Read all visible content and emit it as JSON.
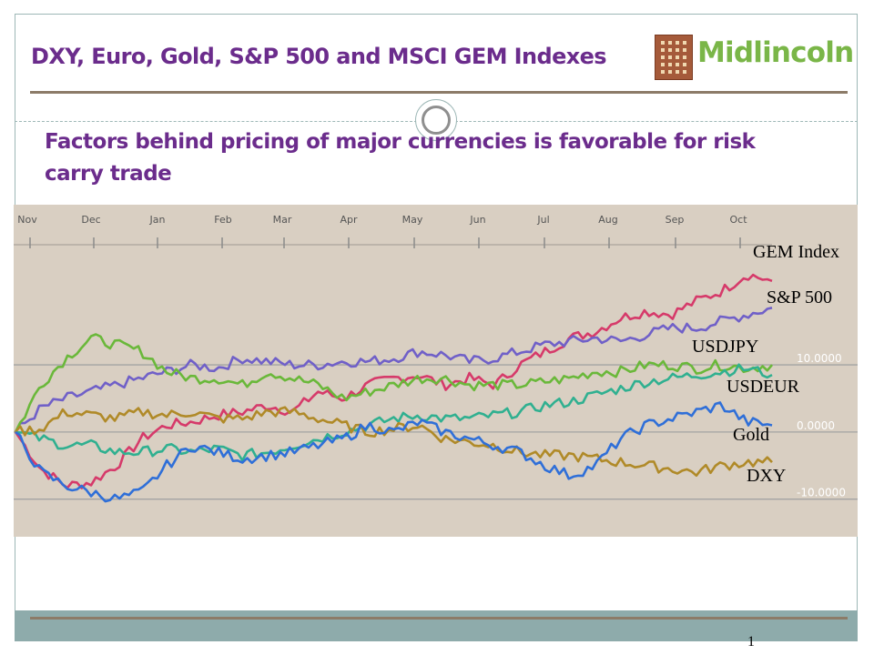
{
  "slide": {
    "title": "DXY, Euro, Gold, S&P 500 and MSCI GEM Indexes",
    "subtitle": "Factors behind pricing of major currencies is favorable for risk carry trade",
    "page_number": "1"
  },
  "logo": {
    "text": "Midlincoln",
    "text_color": "#7ab648"
  },
  "colors": {
    "title": "#6b2c8c",
    "chart_background": "#d9cfc2",
    "frame": "#9db7b6",
    "rule": "#8c7b68",
    "footer": "#8eabab"
  },
  "chart_data": {
    "type": "line",
    "title": "",
    "xlabel": "",
    "ylabel": "",
    "x_ticks": [
      "Nov",
      "Dec",
      "Jan",
      "Feb",
      "Mar",
      "Apr",
      "May",
      "Jun",
      "Jul",
      "Aug",
      "Sep",
      "Oct"
    ],
    "y_ticks": [
      {
        "value": 10,
        "label": "10.0000"
      },
      {
        "value": 0,
        "label": "0.0000"
      },
      {
        "value": -10,
        "label": "-10.0000"
      }
    ],
    "ylim": [
      -15.6,
      26
    ],
    "grid": true,
    "legend": "labels at right end of each line",
    "series": [
      {
        "name": "GEM Index",
        "color": "#d63a6a",
        "values": [
          0,
          -5.5,
          -8,
          -7.5,
          -5,
          -1,
          1,
          1.5,
          2.5,
          3,
          4,
          3,
          6,
          5,
          7,
          8,
          8.5,
          7,
          8,
          7,
          10,
          12,
          14,
          15,
          17,
          18,
          17.5,
          19.5,
          21,
          23.5,
          22.5
        ]
      },
      {
        "name": "S&P 500",
        "color": "#7060c8",
        "values": [
          0,
          3.5,
          5,
          6,
          7,
          8,
          9,
          10,
          9.5,
          11,
          10.5,
          10,
          10,
          10.5,
          10.5,
          11,
          12,
          11.5,
          10.5,
          11,
          12,
          13,
          13.5,
          14,
          13.5,
          14.5,
          15.5,
          15.5,
          16.5,
          17.5,
          18.5
        ]
      },
      {
        "name": "USDJPY",
        "color": "#6ab83a",
        "values": [
          0,
          7,
          11,
          14,
          13,
          12,
          9,
          8,
          8,
          7,
          9,
          8,
          7,
          5,
          6,
          7,
          8,
          8,
          7,
          7,
          7,
          7.5,
          8,
          9,
          9,
          10,
          10,
          9.5,
          10,
          9.5,
          10
        ]
      },
      {
        "name": "USDEUR",
        "color": "#30b090",
        "values": [
          0,
          -1,
          -2,
          -2,
          -3,
          -3,
          -2.5,
          -3,
          -2.5,
          -3.5,
          -3,
          -2,
          -1,
          0,
          1,
          2,
          2.5,
          2,
          2,
          2.5,
          3,
          4,
          4.5,
          5.5,
          6.5,
          7.5,
          8,
          8.5,
          9,
          9.5,
          8.5
        ]
      },
      {
        "name": "Gold",
        "color": "#b08a28",
        "values": [
          0,
          0.5,
          3,
          2.5,
          2,
          3,
          2.5,
          3,
          2,
          2,
          3,
          3,
          2,
          1,
          0,
          0.5,
          1,
          -1,
          -1.5,
          -2,
          -3,
          -3.5,
          -3.5,
          -4,
          -4.5,
          -5,
          -5.5,
          -6,
          -5,
          -4.5,
          -4.5
        ]
      },
      {
        "name": "DXY",
        "color": "#2f6fd8",
        "values": [
          0,
          -6,
          -8,
          -9,
          -10,
          -9,
          -5,
          -2,
          -3,
          -4,
          -3.5,
          -3,
          -2,
          -1,
          1,
          0,
          1.5,
          0,
          -1,
          -2,
          -3,
          -5,
          -6.5,
          -5,
          -1,
          1,
          2,
          3,
          4,
          1.5,
          1
        ]
      }
    ]
  }
}
